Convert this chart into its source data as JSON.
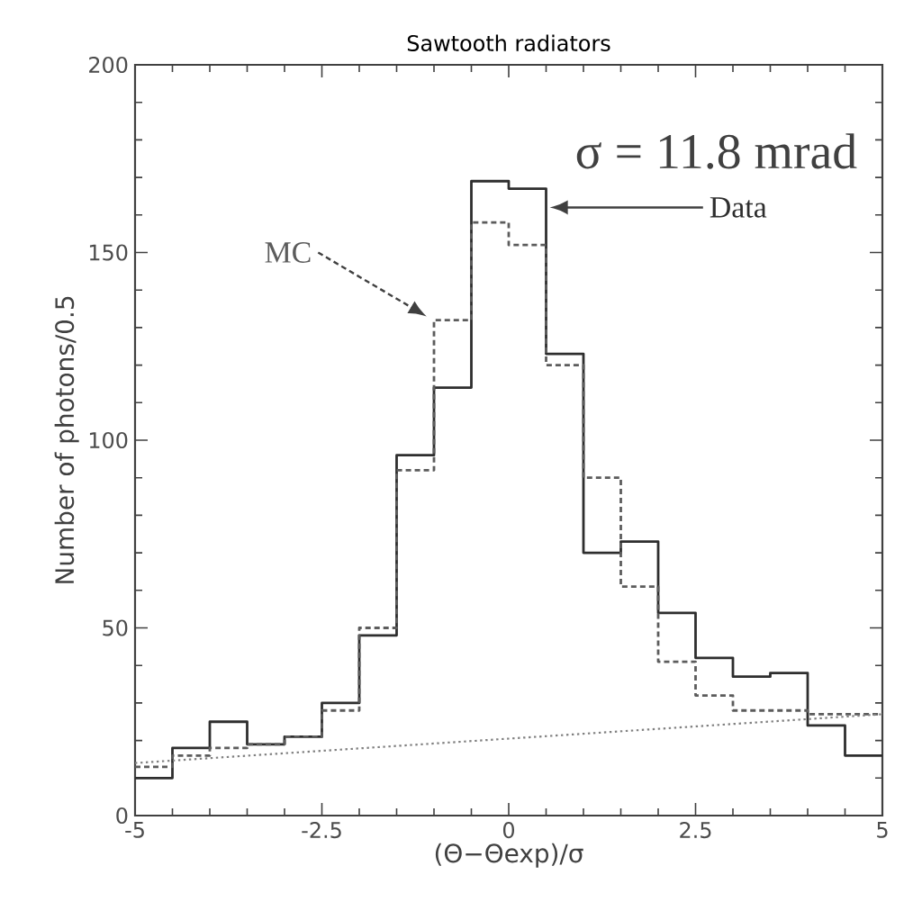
{
  "chart_data": {
    "type": "histogram",
    "title": "Sawtooth radiators",
    "xlabel": "(Θ−Θexp)/σ",
    "ylabel": "Number of photons/0.5",
    "bins": [
      -5,
      -4.5,
      -4,
      -3.5,
      -3,
      -2.5,
      -2,
      -1.5,
      -1,
      -0.5,
      0,
      0.5,
      1,
      1.5,
      2,
      2.5,
      3,
      3.5,
      4,
      4.5,
      5
    ],
    "series": [
      {
        "name": "Data",
        "color": "#2e2e2e",
        "line_style": "solid",
        "values": [
          10,
          18,
          25,
          19,
          21,
          30,
          48,
          96,
          114,
          169,
          167,
          123,
          70,
          73,
          54,
          42,
          37,
          38,
          24,
          16
        ]
      },
      {
        "name": "MC",
        "color": "#5c5c5c",
        "line_style": "dashed",
        "values": [
          13,
          16,
          18,
          19,
          21,
          28,
          50,
          92,
          132,
          158,
          152,
          120,
          90,
          61,
          41,
          32,
          28,
          28,
          27,
          27
        ]
      },
      {
        "type": "line",
        "color": "#808080",
        "line_style": "dotted",
        "x": [
          -5,
          5
        ],
        "values": [
          14,
          27
        ]
      }
    ],
    "annotations": [
      "σ =  11.8 mrad"
    ],
    "xlim": [
      -5,
      5
    ],
    "ylim": [
      0,
      200
    ],
    "xticks": [
      -5,
      -2.5,
      0,
      2.5,
      5
    ],
    "yticks": [
      0,
      50,
      100,
      150,
      200
    ],
    "grid": false,
    "legend": false
  }
}
